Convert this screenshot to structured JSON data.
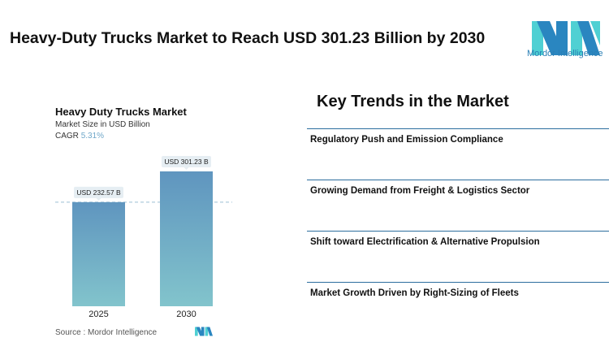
{
  "header": {
    "title": "Heavy-Duty Trucks Market to Reach USD 301.23 Billion by 2030",
    "logo_text": "Mordor Intelligence"
  },
  "chart_data": {
    "type": "bar",
    "title": "Heavy Duty Trucks Market",
    "subtitle": "Market Size in USD Billion",
    "cagr_label": "CAGR",
    "cagr_value": "5.31%",
    "categories": [
      "2025",
      "2030"
    ],
    "values": [
      232.57,
      301.23
    ],
    "data_labels": [
      "USD 232.57 B",
      "USD 301.23 B"
    ],
    "ylim": [
      0,
      301.23
    ],
    "colors": {
      "bar_top": "#5f95bf",
      "bar_bottom": "#82c4cc"
    },
    "source": "Source :  Mordor Intelligence"
  },
  "trends": {
    "heading": "Key Trends in the Market",
    "items": [
      "Regulatory Push and Emission Compliance",
      "Growing Demand from Freight & Logistics Sector",
      "Shift toward Electrification & Alternative Propulsion",
      "Market Growth Driven by Right-Sizing of Fleets"
    ]
  }
}
